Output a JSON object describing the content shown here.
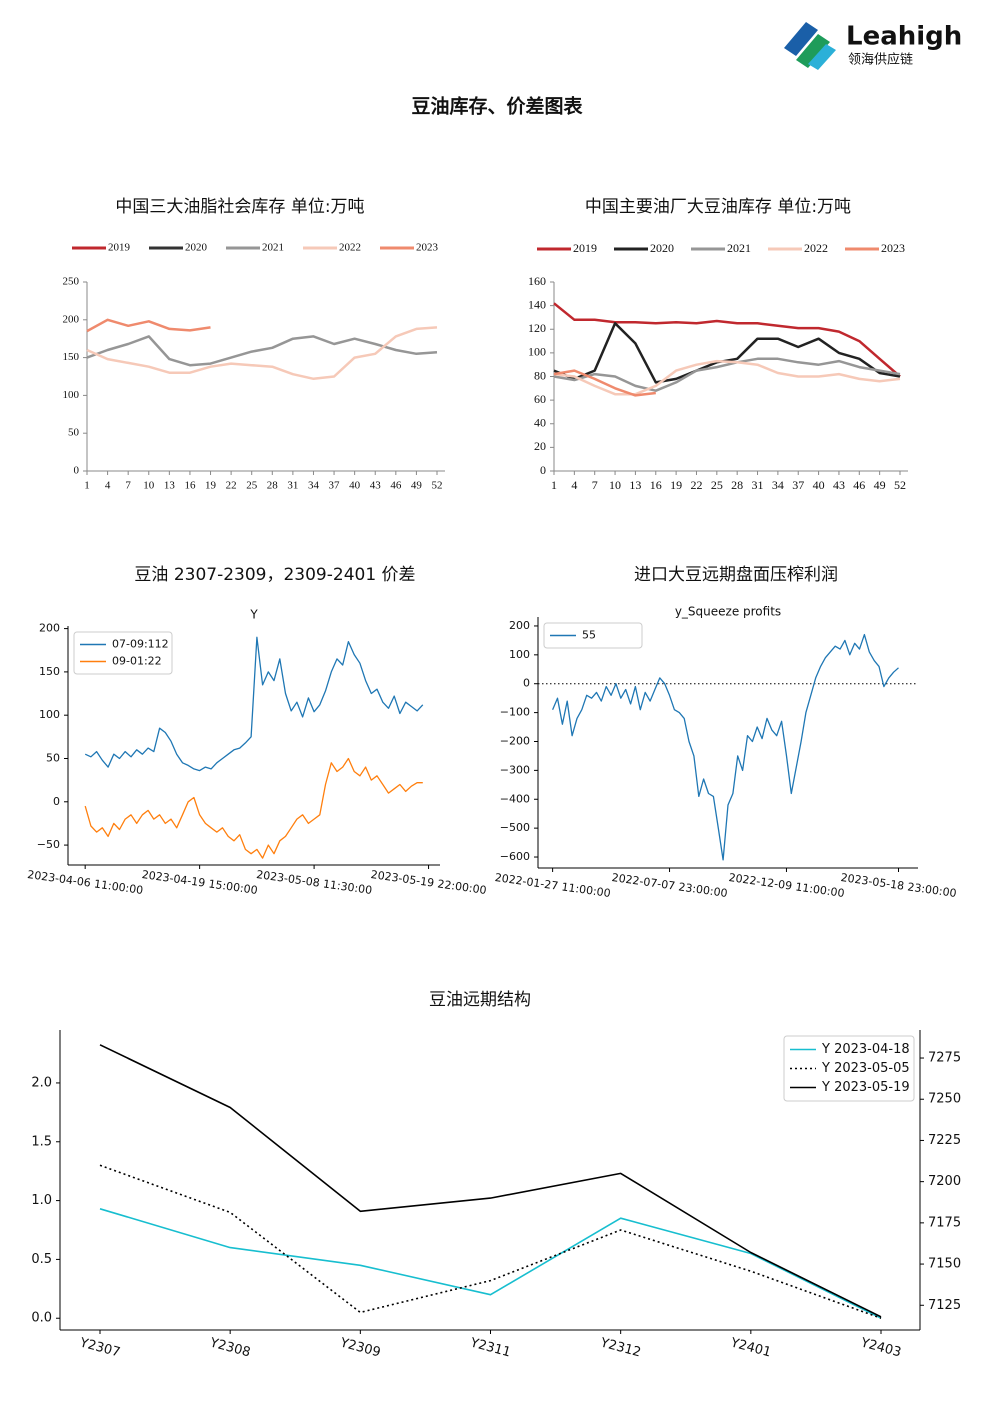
{
  "header": {
    "logo": "Leahigh",
    "logo_sub": "领海供应链",
    "title": "豆油库存、价差图表"
  },
  "chart_data": [
    {
      "type": "line",
      "title": "中国三大油脂社会库存  单位:万吨",
      "legend": "top",
      "x": [
        1,
        4,
        7,
        10,
        13,
        16,
        19,
        22,
        25,
        28,
        31,
        34,
        37,
        40,
        43,
        46,
        49,
        52
      ],
      "xlim": [
        1,
        52
      ],
      "xticks": [
        1,
        4,
        7,
        10,
        13,
        16,
        19,
        22,
        25,
        28,
        31,
        34,
        37,
        40,
        43,
        46,
        49,
        52
      ],
      "ylim": [
        0,
        250
      ],
      "yticks": [
        0,
        50,
        100,
        150,
        200,
        250
      ],
      "series": [
        {
          "name": "2019",
          "color": "#c0282e",
          "values": [
            null,
            null,
            null,
            null,
            null,
            null,
            null,
            null,
            null,
            null,
            null,
            null,
            null,
            null,
            null,
            null,
            null,
            null
          ]
        },
        {
          "name": "2020",
          "color": "#333333",
          "values": [
            null,
            null,
            null,
            null,
            null,
            null,
            null,
            null,
            null,
            null,
            null,
            null,
            null,
            null,
            null,
            null,
            null,
            null
          ]
        },
        {
          "name": "2021",
          "color": "#969696",
          "values": [
            150,
            160,
            168,
            178,
            148,
            140,
            142,
            150,
            158,
            163,
            175,
            178,
            168,
            175,
            168,
            160,
            155,
            157
          ]
        },
        {
          "name": "2022",
          "color": "#f6c9b8",
          "values": [
            160,
            148,
            143,
            138,
            130,
            130,
            138,
            142,
            140,
            138,
            128,
            122,
            125,
            150,
            155,
            178,
            188,
            190
          ]
        },
        {
          "name": "2023",
          "color": "#ef8a6d",
          "values": [
            185,
            200,
            192,
            198,
            188,
            186,
            190,
            null,
            null,
            null,
            null,
            null,
            null,
            null,
            null,
            null,
            null,
            null
          ]
        }
      ]
    },
    {
      "type": "line",
      "title": "中国主要油厂大豆油库存  单位:万吨",
      "legend": "top",
      "x": [
        1,
        4,
        7,
        10,
        13,
        16,
        19,
        22,
        25,
        28,
        31,
        34,
        37,
        40,
        43,
        46,
        49,
        52
      ],
      "xlim": [
        1,
        52
      ],
      "xticks": [
        1,
        4,
        7,
        10,
        13,
        16,
        19,
        22,
        25,
        28,
        31,
        34,
        37,
        40,
        43,
        46,
        49,
        52
      ],
      "ylim": [
        0,
        160
      ],
      "yticks": [
        0,
        20,
        40,
        60,
        80,
        100,
        120,
        140,
        160
      ],
      "series": [
        {
          "name": "2019",
          "color": "#c0282e",
          "values": [
            142,
            128,
            128,
            126,
            126,
            125,
            126,
            125,
            127,
            125,
            125,
            123,
            121,
            121,
            118,
            110,
            95,
            80
          ]
        },
        {
          "name": "2020",
          "color": "#222222",
          "values": [
            85,
            78,
            85,
            125,
            108,
            75,
            78,
            85,
            92,
            95,
            112,
            112,
            105,
            112,
            100,
            95,
            83,
            80
          ]
        },
        {
          "name": "2021",
          "color": "#969696",
          "values": [
            80,
            77,
            82,
            80,
            72,
            68,
            75,
            85,
            88,
            92,
            95,
            95,
            92,
            90,
            93,
            88,
            85,
            82
          ]
        },
        {
          "name": "2022",
          "color": "#f6c9b8",
          "values": [
            82,
            80,
            72,
            65,
            65,
            72,
            85,
            90,
            93,
            92,
            90,
            83,
            80,
            80,
            82,
            78,
            76,
            78
          ]
        },
        {
          "name": "2023",
          "color": "#ef8a6d",
          "values": [
            82,
            85,
            78,
            70,
            64,
            66,
            null,
            null,
            null,
            null,
            null,
            null,
            null,
            null,
            null,
            null,
            null,
            null
          ]
        }
      ]
    },
    {
      "type": "line",
      "title": "豆油 2307-2309，2309-2401 价差",
      "subtitle": "Y",
      "legend": "upper left",
      "xlim": [
        -3,
        62
      ],
      "xticks": [
        {
          "value": 0,
          "label": "2023-04-06 11:00:00"
        },
        {
          "value": 20,
          "label": "2023-04-19 15:00:00"
        },
        {
          "value": 40,
          "label": "2023-05-08 11:30:00"
        },
        {
          "value": 60,
          "label": "2023-05-19 22:00:00"
        }
      ],
      "ylim": [
        -73,
        203
      ],
      "yticks": [
        {
          "value": -50,
          "label": "−50"
        },
        0,
        50,
        100,
        150,
        200
      ],
      "series": [
        {
          "name": "07-09:112",
          "color": "#1f77b4",
          "values": [
            55,
            52,
            58,
            48,
            40,
            55,
            50,
            58,
            52,
            60,
            55,
            62,
            58,
            85,
            80,
            70,
            55,
            45,
            42,
            38,
            36,
            40,
            38,
            45,
            50,
            55,
            60,
            62,
            68,
            75,
            190,
            135,
            150,
            140,
            165,
            125,
            105,
            115,
            98,
            120,
            104,
            112,
            128,
            150,
            165,
            158,
            185,
            170,
            160,
            140,
            125,
            130,
            115,
            108,
            122,
            102,
            115,
            110,
            105,
            112
          ]
        },
        {
          "name": "09-01:22",
          "color": "#ff7f0e",
          "values": [
            -5,
            -28,
            -35,
            -30,
            -40,
            -25,
            -32,
            -20,
            -15,
            -25,
            -15,
            -10,
            -20,
            -15,
            -25,
            -20,
            -30,
            -15,
            0,
            5,
            -15,
            -25,
            -30,
            -35,
            -30,
            -40,
            -45,
            -38,
            -55,
            -60,
            -55,
            -65,
            -50,
            -60,
            -45,
            -40,
            -30,
            -20,
            -15,
            -25,
            -20,
            -15,
            20,
            45,
            35,
            40,
            50,
            35,
            30,
            40,
            25,
            30,
            20,
            10,
            15,
            20,
            12,
            18,
            22,
            22
          ]
        }
      ]
    },
    {
      "type": "line",
      "title": "进口大豆远期盘面压榨利润",
      "subtitle": "y_Squeeze profits",
      "legend": "upper left",
      "hline": 0,
      "xlim": [
        -3,
        75
      ],
      "xticks": [
        {
          "value": 0,
          "label": "2022-01-27 11:00:00"
        },
        {
          "value": 24,
          "label": "2022-07-07 23:00:00"
        },
        {
          "value": 48,
          "label": "2022-12-09 11:00:00"
        },
        {
          "value": 71,
          "label": "2023-05-18 23:00:00"
        }
      ],
      "ylim": [
        -638,
        231
      ],
      "yticks": [
        {
          "value": -600,
          "label": "−600"
        },
        {
          "value": -500,
          "label": "−500"
        },
        {
          "value": -400,
          "label": "−400"
        },
        {
          "value": -300,
          "label": "−300"
        },
        {
          "value": -200,
          "label": "−200"
        },
        {
          "value": -100,
          "label": "−100"
        },
        0,
        100,
        200
      ],
      "series": [
        {
          "name": "55",
          "color": "#1f77b4",
          "values": [
            -90,
            -50,
            -140,
            -60,
            -180,
            -120,
            -90,
            -40,
            -50,
            -30,
            -60,
            -10,
            -40,
            0,
            -50,
            -20,
            -70,
            -10,
            -90,
            -30,
            -60,
            -20,
            20,
            0,
            -40,
            -90,
            -100,
            -120,
            -200,
            -250,
            -390,
            -330,
            -380,
            -390,
            -500,
            -610,
            -420,
            -380,
            -250,
            -300,
            -180,
            -200,
            -150,
            -190,
            -120,
            -160,
            -180,
            -130,
            -250,
            -380,
            -290,
            -200,
            -100,
            -40,
            20,
            60,
            90,
            110,
            130,
            120,
            150,
            100,
            140,
            120,
            170,
            110,
            80,
            60,
            -10,
            20,
            40,
            55
          ]
        }
      ]
    },
    {
      "type": "line",
      "title": "豆油远期结构",
      "legend": "upper right",
      "categories": [
        "Y2307",
        "Y2308",
        "Y2309",
        "Y2311",
        "Y2312",
        "Y2401",
        "Y2403"
      ],
      "ylim": [
        -0.1,
        2.45
      ],
      "yticks": [
        {
          "value": 0,
          "label": "0.0"
        },
        0.5,
        {
          "value": 1,
          "label": "1.0"
        },
        1.5,
        {
          "value": 2,
          "label": "2.0"
        }
      ],
      "y2lim": [
        7110,
        7292
      ],
      "y2ticks": [
        7125,
        7150,
        7175,
        7200,
        7225,
        7250,
        7275
      ],
      "series": [
        {
          "name": "Y 2023-04-18",
          "color": "#17becf",
          "values": [
            0.93,
            0.6,
            0.45,
            0.2,
            0.85,
            0.55,
            0.0
          ]
        },
        {
          "name": "Y 2023-05-05",
          "color": "#000000",
          "dash": "dotted",
          "values": [
            1.3,
            0.9,
            0.05,
            0.32,
            0.75,
            0.4,
            0.0
          ]
        },
        {
          "name": "Y 2023-05-19",
          "color": "#000000",
          "axis": "y2",
          "values": [
            7283,
            7245,
            7182,
            7190,
            7205,
            7157,
            7118
          ]
        }
      ]
    }
  ]
}
